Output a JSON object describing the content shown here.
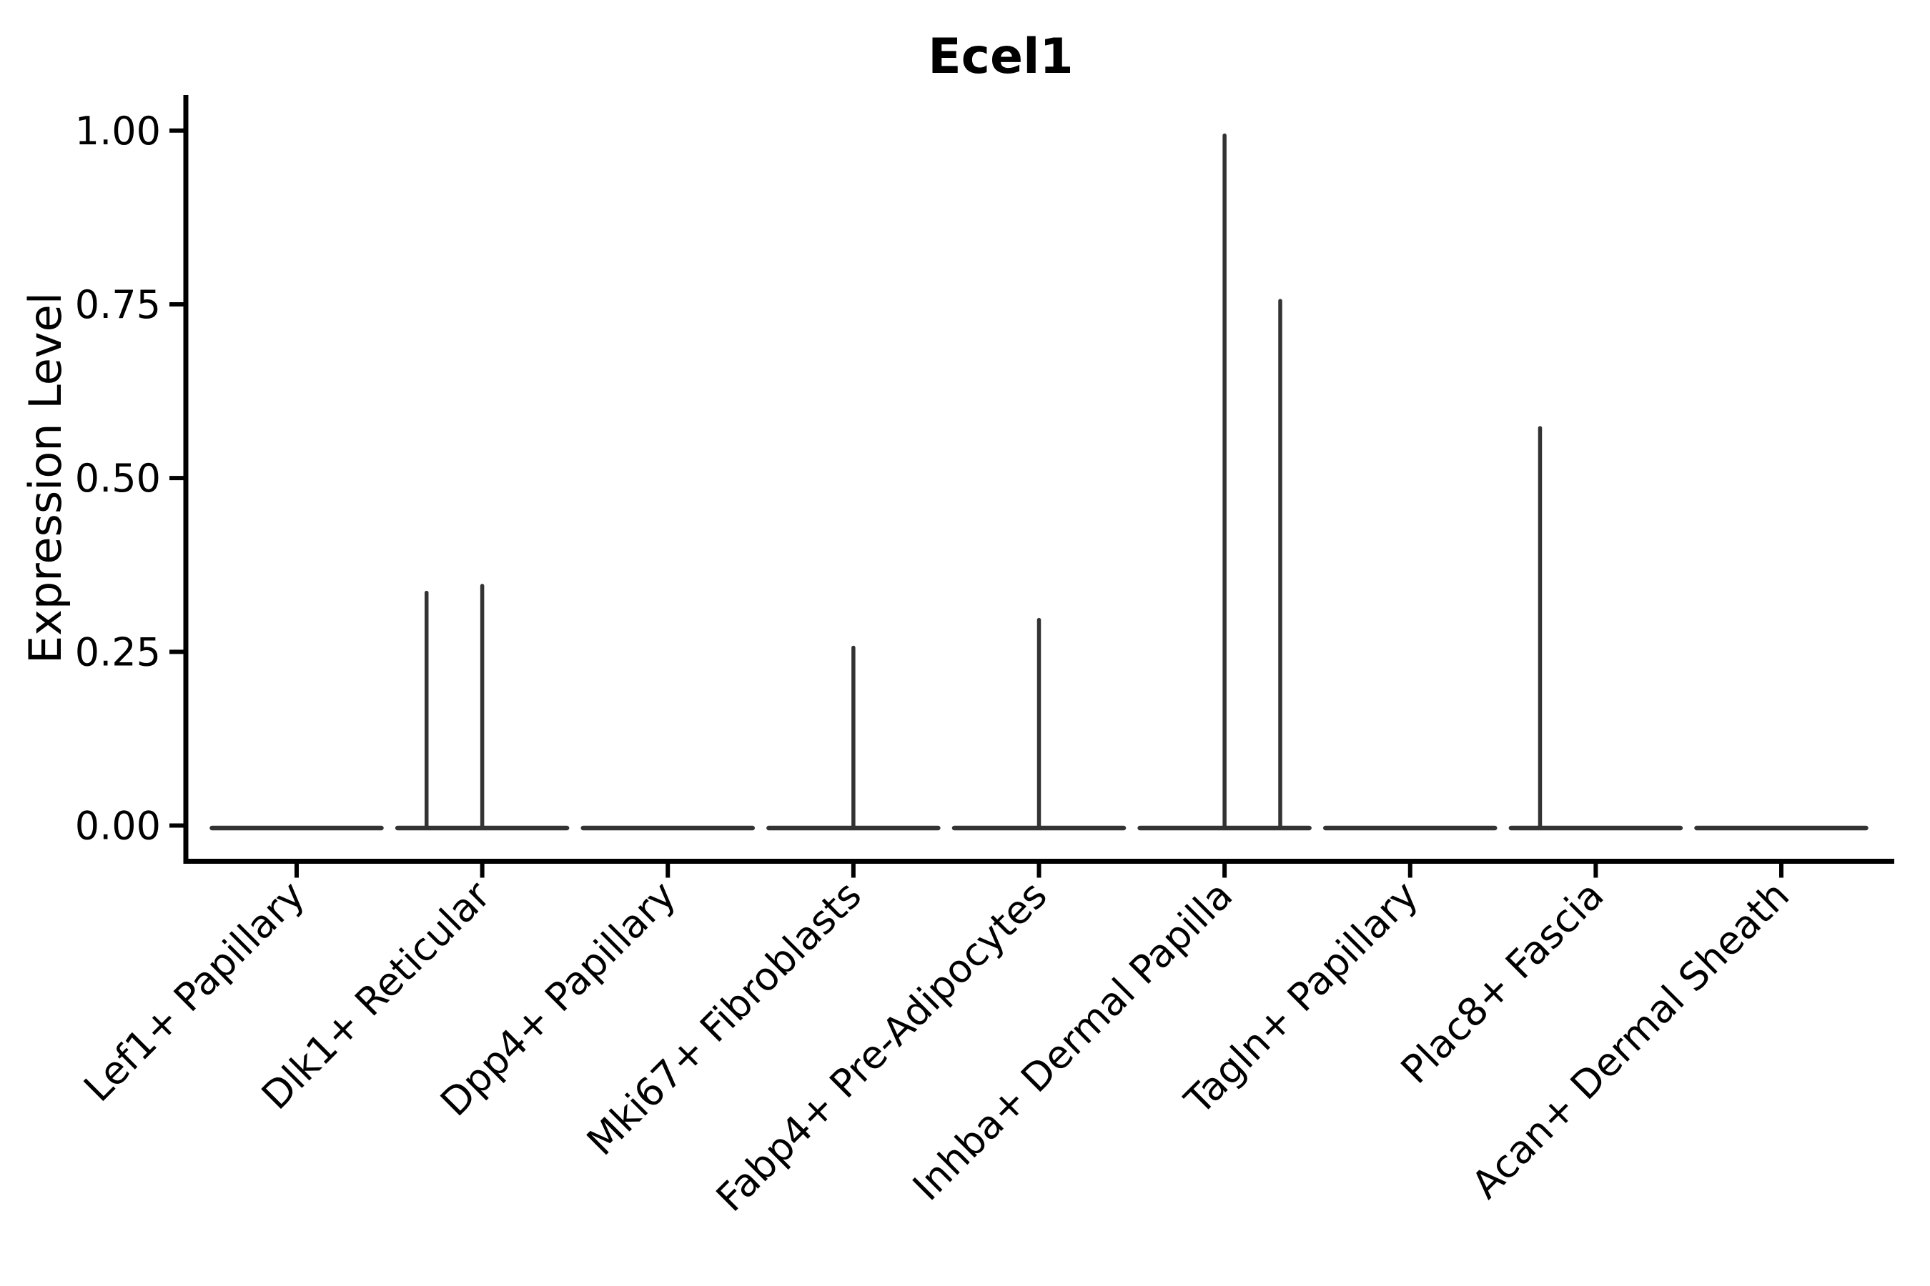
{
  "figure": {
    "background": "#ffffff",
    "axis_color": "#000000",
    "violin_line_color": "#333333"
  },
  "chart_data": {
    "type": "violin",
    "title": "Ecel1",
    "xlabel": "",
    "ylabel": "Expression Level",
    "ylim": [
      0,
      1.0
    ],
    "yticks": [
      0.0,
      0.25,
      0.5,
      0.75,
      1.0
    ],
    "ytick_labels": [
      "0.00",
      "0.25",
      "0.50",
      "0.75",
      "1.00"
    ],
    "grid": false,
    "legend": "none",
    "categories": [
      "Lef1+ Papillary",
      "Dlk1+ Reticular",
      "Dpp4+ Papillary",
      "Mki67+ Fibroblasts",
      "Fabp4+ Pre-Adipocytes",
      "Inhba+ Dermal Papilla",
      "Tagln+ Papillary",
      "Plac8+ Fascia",
      "Acan+ Dermal Sheath"
    ],
    "violins": [
      {
        "category": "Lef1+ Papillary",
        "baseline_value": 0.0,
        "spikes": []
      },
      {
        "category": "Dlk1+ Reticular",
        "baseline_value": 0.0,
        "spikes": [
          {
            "offset_frac": -0.3,
            "value": 0.335
          },
          {
            "offset_frac": 0.0,
            "value": 0.345
          }
        ]
      },
      {
        "category": "Dpp4+ Papillary",
        "baseline_value": 0.0,
        "spikes": []
      },
      {
        "category": "Mki67+ Fibroblasts",
        "baseline_value": 0.0,
        "spikes": [
          {
            "offset_frac": 0.0,
            "value": 0.256
          }
        ]
      },
      {
        "category": "Fabp4+ Pre-Adipocytes",
        "baseline_value": 0.0,
        "spikes": [
          {
            "offset_frac": 0.0,
            "value": 0.296
          }
        ]
      },
      {
        "category": "Inhba+ Dermal Papilla",
        "baseline_value": 0.0,
        "spikes": [
          {
            "offset_frac": 0.0,
            "value": 0.993
          },
          {
            "offset_frac": 0.3,
            "value": 0.755
          }
        ]
      },
      {
        "category": "Tagln+ Papillary",
        "baseline_value": 0.0,
        "spikes": []
      },
      {
        "category": "Plac8+ Fascia",
        "baseline_value": 0.0,
        "spikes": [
          {
            "offset_frac": -0.3,
            "value": 0.572
          }
        ]
      },
      {
        "category": "Acan+ Dermal Sheath",
        "baseline_value": 0.0,
        "spikes": []
      }
    ]
  }
}
